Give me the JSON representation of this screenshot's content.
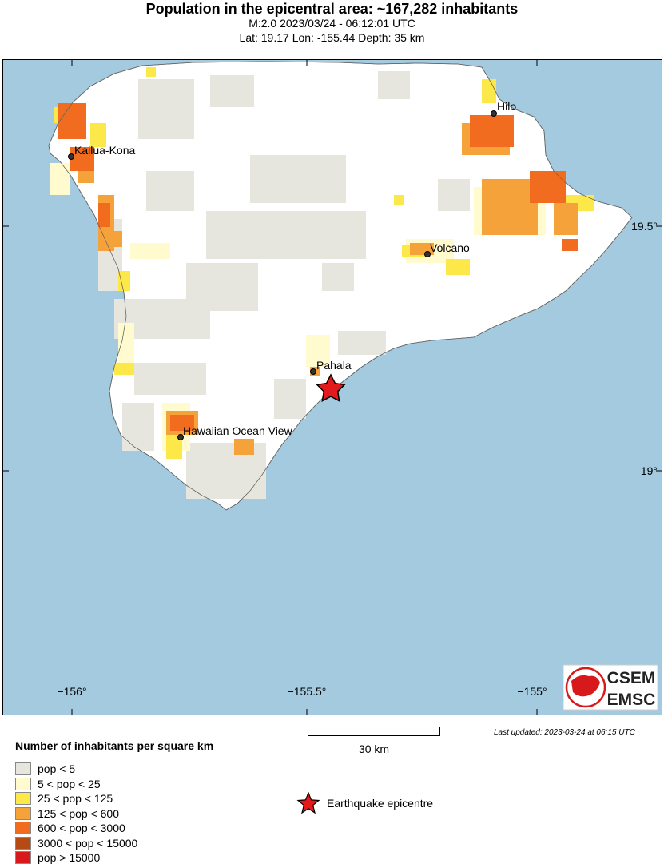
{
  "header": {
    "title": "Population in the epicentral area: ~167,282 inhabitants",
    "line1": "M:2.0 2023/03/24 - 06:12:01 UTC",
    "line2": "Lat: 19.17 Lon: -155.44 Depth: 35 km"
  },
  "map": {
    "cities": [
      {
        "name": "Hilo"
      },
      {
        "name": "Kailua-Kona"
      },
      {
        "name": "Volcano"
      },
      {
        "name": "Pahala"
      },
      {
        "name": "Hawaiian Ocean View"
      }
    ],
    "lat_labels": [
      "19.5°",
      "19°"
    ],
    "lon_labels": [
      "−156°",
      "−155.5°",
      "−155°"
    ],
    "colors": {
      "ocean": "#a3cadf",
      "land": "#ffffff",
      "star": "#e31a1c"
    },
    "logo": {
      "line1": "CSEM",
      "line2": "EMSC"
    }
  },
  "footer": {
    "updated": "Last updated: 2023-03-24 at 06:15 UTC",
    "scale_label": "30 km",
    "legend_title": "Number of inhabitants per square km",
    "legend": [
      {
        "label": "pop < 5",
        "color": "#e6e6df"
      },
      {
        "label": "5 < pop < 25",
        "color": "#fffbcf"
      },
      {
        "label": "25 < pop < 125",
        "color": "#fde84a"
      },
      {
        "label": "125 < pop < 600",
        "color": "#f6a23a"
      },
      {
        "label": "600 < pop < 3000",
        "color": "#f26c1f"
      },
      {
        "label": "3000 < pop < 15000",
        "color": "#b64a14"
      },
      {
        "label": "pop > 15000",
        "color": "#d7191c"
      }
    ],
    "epicentre_label": "Earthquake epicentre"
  }
}
